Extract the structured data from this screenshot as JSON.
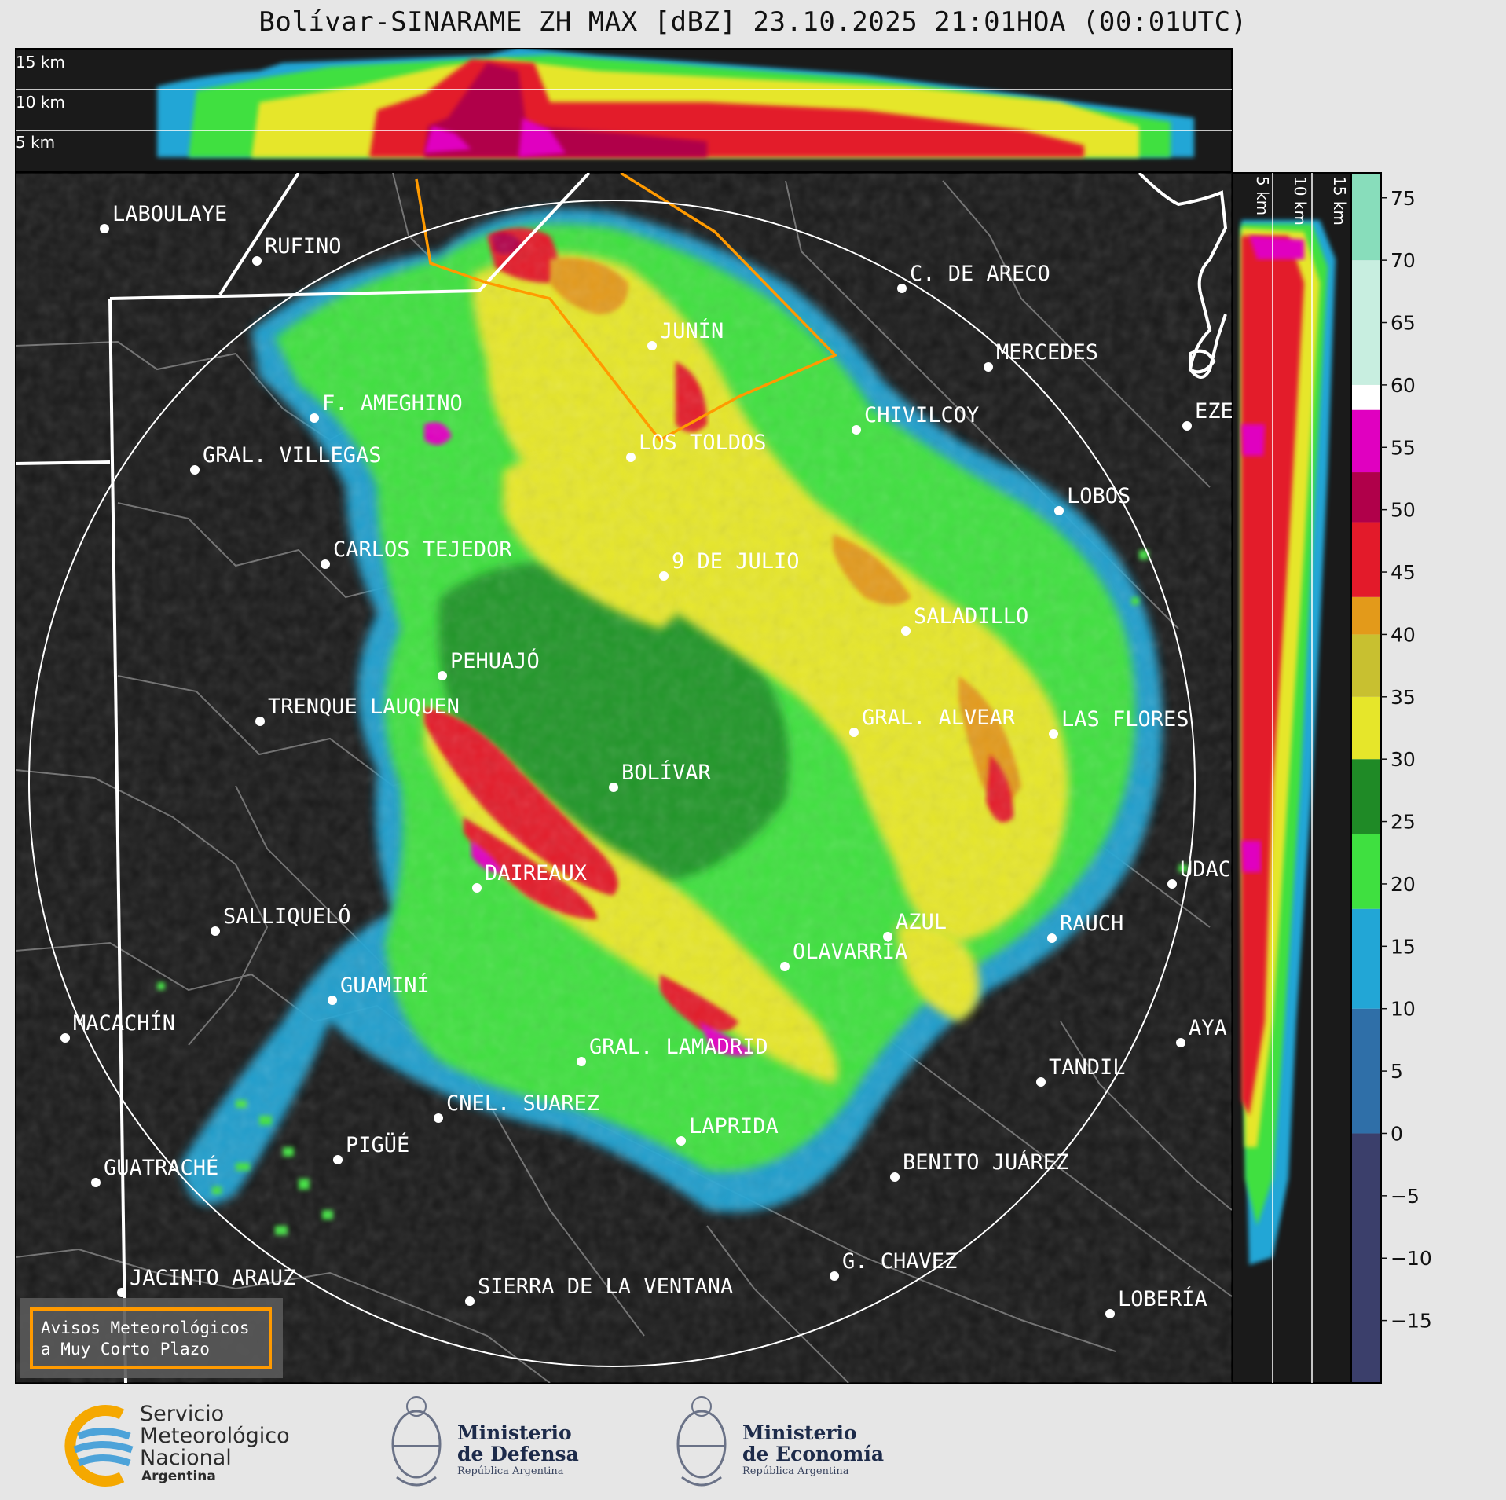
{
  "title": "Bolívar-SINARAME ZH MAX [dBZ] 23.10.2025 21:01HOA (00:01UTC)",
  "top_profile": {
    "height_labels": [
      "15 km",
      "10 km",
      "5 km"
    ]
  },
  "side_profile": {
    "height_labels": [
      "5 km",
      "10 km",
      "15 km"
    ]
  },
  "colorbar": {
    "ticks": [
      75,
      70,
      65,
      60,
      55,
      50,
      45,
      40,
      35,
      30,
      25,
      20,
      15,
      10,
      5,
      0,
      -5,
      -10,
      -15
    ],
    "tick_labels": [
      "75",
      "70",
      "65",
      "60",
      "55",
      "50",
      "45",
      "40",
      "35",
      "30",
      "25",
      "20",
      "15",
      "10",
      "5",
      "0",
      "−5",
      "−10",
      "−15"
    ],
    "min": -20,
    "max": 77,
    "bands": [
      {
        "from": -20,
        "to": 0,
        "color": "#3b3f6b"
      },
      {
        "from": 0,
        "to": 10,
        "color": "#2f6fa8"
      },
      {
        "from": 10,
        "to": 18,
        "color": "#22a6d6"
      },
      {
        "from": 18,
        "to": 24,
        "color": "#3fe040"
      },
      {
        "from": 24,
        "to": 30,
        "color": "#1f8a26"
      },
      {
        "from": 30,
        "to": 35,
        "color": "#e6e62a"
      },
      {
        "from": 35,
        "to": 40,
        "color": "#c8c030"
      },
      {
        "from": 40,
        "to": 43,
        "color": "#e39a1a"
      },
      {
        "from": 43,
        "to": 49,
        "color": "#e31a2a"
      },
      {
        "from": 49,
        "to": 53,
        "color": "#b0004a"
      },
      {
        "from": 53,
        "to": 58,
        "color": "#e000c0"
      },
      {
        "from": 58,
        "to": 60,
        "color": "#ffffff"
      },
      {
        "from": 60,
        "to": 70,
        "color": "#c8eee0"
      },
      {
        "from": 70,
        "to": 77,
        "color": "#88ddbb"
      }
    ]
  },
  "cities": [
    {
      "name": "LABOULAYE"
    },
    {
      "name": "RUFINO"
    },
    {
      "name": "C. DE ARECO"
    },
    {
      "name": "JUNÍN"
    },
    {
      "name": "MERCEDES"
    },
    {
      "name": "F. AMEGHINO"
    },
    {
      "name": "CHIVILCOY"
    },
    {
      "name": "EZE"
    },
    {
      "name": "GRAL. VILLEGAS"
    },
    {
      "name": "LOS TOLDOS"
    },
    {
      "name": "LOBOS"
    },
    {
      "name": "CARLOS TEJEDOR"
    },
    {
      "name": "9 DE JULIO"
    },
    {
      "name": "SALADILLO"
    },
    {
      "name": "PEHUAJÓ"
    },
    {
      "name": "TRENQUE LAUQUEN"
    },
    {
      "name": "GRAL. ALVEAR"
    },
    {
      "name": "LAS FLORES"
    },
    {
      "name": "BOLÍVAR"
    },
    {
      "name": "DAIREAUX"
    },
    {
      "name": "UDAC"
    },
    {
      "name": "SALLIQUELÓ"
    },
    {
      "name": "AZUL"
    },
    {
      "name": "RAUCH"
    },
    {
      "name": "OLAVARRÍA"
    },
    {
      "name": "GUAMINÍ"
    },
    {
      "name": "MACACHÍN"
    },
    {
      "name": "AYA"
    },
    {
      "name": "GRAL. LAMADRID"
    },
    {
      "name": "TANDIL"
    },
    {
      "name": "CNEL. SUAREZ"
    },
    {
      "name": "LAPRIDA"
    },
    {
      "name": "PIGÜÉ"
    },
    {
      "name": "GUATRACHÉ"
    },
    {
      "name": "BENITO JUÁREZ"
    },
    {
      "name": "G. CHAVEZ"
    },
    {
      "name": "JACINTO ARAUZ"
    },
    {
      "name": "SIERRA DE LA VENTANA"
    },
    {
      "name": "LOBERÍA"
    }
  ],
  "alerts_box": {
    "line1": "Avisos Meteorológicos",
    "line2": "a Muy Corto Plazo"
  },
  "logos": {
    "smn": {
      "line1": "Servicio",
      "line2": "Meteorológico",
      "line3": "Nacional",
      "line4": "Argentina"
    },
    "defensa": {
      "line1": "Ministerio",
      "line2": "de Defensa",
      "line3": "República Argentina"
    },
    "economia": {
      "line1": "Ministerio",
      "line2": "de Economía",
      "line3": "República Argentina"
    }
  },
  "colors": {
    "background": "#1a1a1a",
    "page": "#e6e6e6",
    "warning_polygon": "#ff9a00",
    "range_ring": "#ffffff",
    "district_border": "#8a8a8a"
  }
}
